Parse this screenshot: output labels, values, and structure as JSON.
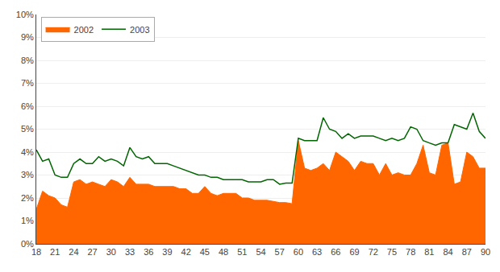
{
  "chart_data": {
    "type": "line",
    "x": [
      18,
      19,
      20,
      21,
      22,
      23,
      24,
      25,
      26,
      27,
      28,
      29,
      30,
      31,
      32,
      33,
      34,
      35,
      36,
      37,
      38,
      39,
      40,
      41,
      42,
      43,
      44,
      45,
      46,
      47,
      48,
      49,
      50,
      51,
      52,
      53,
      54,
      55,
      56,
      57,
      58,
      59,
      60,
      61,
      62,
      63,
      64,
      65,
      66,
      67,
      68,
      69,
      70,
      71,
      72,
      73,
      74,
      75,
      76,
      77,
      78,
      79,
      80,
      81,
      82,
      83,
      84,
      85,
      86,
      87,
      88,
      89,
      90
    ],
    "series": [
      {
        "name": "2002",
        "type": "area",
        "color": "#ff6600",
        "values": [
          1.5,
          2.3,
          2.1,
          2.0,
          1.7,
          1.6,
          2.7,
          2.8,
          2.6,
          2.7,
          2.6,
          2.5,
          2.8,
          2.7,
          2.5,
          2.9,
          2.6,
          2.6,
          2.6,
          2.5,
          2.5,
          2.5,
          2.5,
          2.4,
          2.4,
          2.2,
          2.2,
          2.5,
          2.2,
          2.1,
          2.2,
          2.2,
          2.2,
          2.0,
          2.0,
          1.9,
          1.9,
          1.9,
          1.85,
          1.8,
          1.8,
          1.75,
          4.5,
          3.3,
          3.2,
          3.3,
          3.5,
          3.2,
          4.0,
          3.8,
          3.6,
          3.2,
          3.6,
          3.5,
          3.5,
          3.0,
          3.5,
          3.0,
          3.1,
          3.0,
          3.0,
          3.5,
          4.3,
          3.1,
          3.0,
          4.3,
          4.4,
          2.6,
          2.7,
          4.0,
          3.8,
          3.3,
          3.3
        ]
      },
      {
        "name": "2003",
        "type": "line",
        "color": "#006600",
        "values": [
          4.1,
          3.6,
          3.7,
          3.0,
          2.9,
          2.9,
          3.5,
          3.7,
          3.5,
          3.5,
          3.8,
          3.6,
          3.7,
          3.6,
          3.4,
          4.2,
          3.8,
          3.7,
          3.8,
          3.5,
          3.5,
          3.5,
          3.4,
          3.3,
          3.2,
          3.1,
          3.0,
          3.0,
          2.9,
          2.9,
          2.8,
          2.8,
          2.8,
          2.8,
          2.7,
          2.7,
          2.7,
          2.8,
          2.8,
          2.6,
          2.65,
          2.65,
          4.6,
          4.5,
          4.5,
          4.5,
          5.5,
          5.0,
          4.9,
          4.6,
          4.8,
          4.6,
          4.7,
          4.7,
          4.7,
          4.6,
          4.5,
          4.6,
          4.5,
          4.6,
          5.1,
          5.0,
          4.5,
          4.4,
          4.3,
          4.4,
          4.4,
          5.2,
          5.1,
          5.0,
          5.7,
          4.9,
          4.6
        ]
      }
    ],
    "xlim": [
      18,
      90
    ],
    "xticks": [
      18,
      21,
      24,
      27,
      30,
      33,
      36,
      39,
      42,
      45,
      48,
      51,
      54,
      57,
      60,
      63,
      66,
      69,
      72,
      75,
      78,
      81,
      84,
      87,
      90
    ],
    "ylim": [
      0,
      10
    ],
    "yticks": [
      {
        "value": 0,
        "label": "0%"
      },
      {
        "value": 1,
        "label": "1%"
      },
      {
        "value": 2,
        "label": "2%"
      },
      {
        "value": 3,
        "label": "3%"
      },
      {
        "value": 4,
        "label": "4%"
      },
      {
        "value": 5,
        "label": "5%"
      },
      {
        "value": 6,
        "label": "6%"
      },
      {
        "value": 7,
        "label": "7%"
      },
      {
        "value": 8,
        "label": "8%"
      },
      {
        "value": 9,
        "label": "9%"
      },
      {
        "value": 10,
        "label": "10%"
      }
    ],
    "grid": "y",
    "legend": "upper left"
  }
}
